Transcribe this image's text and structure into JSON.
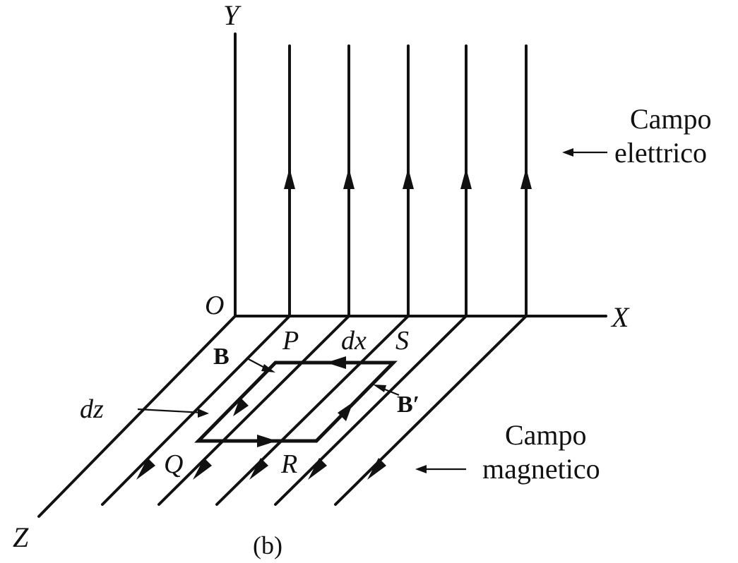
{
  "labels": {
    "axis_y": "Y",
    "axis_x": "X",
    "axis_z": "Z",
    "origin": "O",
    "point_p": "P",
    "point_q": "Q",
    "point_r": "R",
    "point_s": "S",
    "dx": "dx",
    "dz": "dz",
    "b_left": "B",
    "b_right": "B′",
    "electric_line1": "Campo",
    "electric_line2": "elettrico",
    "magnetic_line1": "Campo",
    "magnetic_line2": "magnetico",
    "caption": "(b)"
  }
}
